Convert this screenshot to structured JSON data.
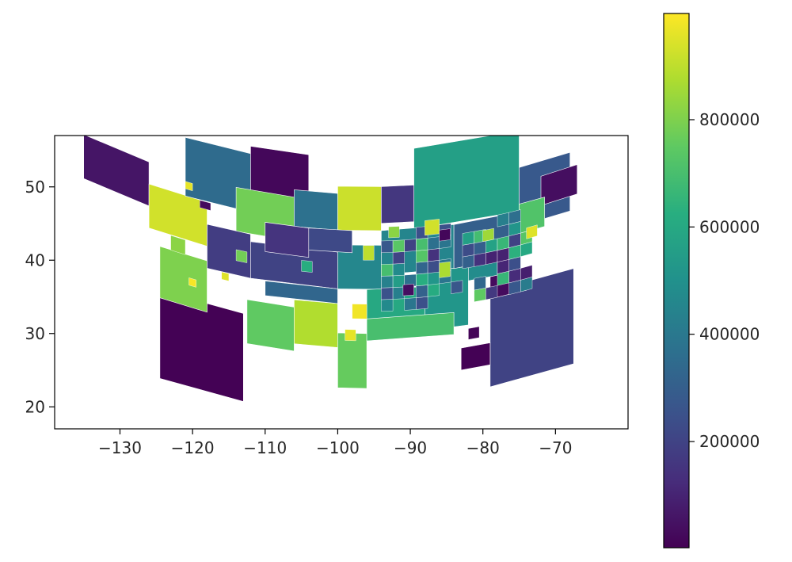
{
  "chart_data": {
    "type": "heatmap",
    "title": "",
    "xlabel": "",
    "ylabel": "",
    "xlim": [
      -139,
      -60
    ],
    "ylim": [
      17,
      57
    ],
    "xticks": [
      -130,
      -120,
      -110,
      -100,
      -90,
      -80,
      -70
    ],
    "yticks": [
      20,
      30,
      40,
      50
    ],
    "grid": false,
    "colormap": "viridis",
    "colorbar": {
      "vmin": 2000,
      "vmax": 998000,
      "ticks": [
        200000,
        400000,
        600000,
        800000
      ]
    },
    "cells": [
      {
        "lon": [
          -124.5,
          -113
        ],
        "lat": [
          19,
          31
        ],
        "value": 5000
      },
      {
        "lon": [
          -112.5,
          -106
        ],
        "lat": [
          27,
          33
        ],
        "value": 750000
      },
      {
        "lon": [
          -106,
          -100
        ],
        "lat": [
          28,
          34
        ],
        "value": 880000
      },
      {
        "lon": [
          -124.5,
          -118
        ],
        "lat": [
          30,
          37
        ],
        "value": 800000
      },
      {
        "lon": [
          -100,
          -96
        ],
        "lat": [
          22.5,
          30
        ],
        "value": 760000
      },
      {
        "lon": [
          -79,
          -67.5
        ],
        "lat": [
          21,
          34
        ],
        "value": 200000
      },
      {
        "lon": [
          -83,
          -79
        ],
        "lat": [
          24,
          27
        ],
        "value": 5000
      },
      {
        "lon": [
          -89.5,
          -75
        ],
        "lat": [
          44,
          55
        ],
        "value": 560000
      },
      {
        "lon": [
          -75,
          -68
        ],
        "lat": [
          42,
          50
        ],
        "value": 280000
      },
      {
        "lon": [
          -135,
          -126
        ],
        "lat": [
          42,
          48
        ],
        "value": 60000
      },
      {
        "lon": [
          -126,
          -118
        ],
        "lat": [
          39,
          45
        ],
        "value": 930000
      },
      {
        "lon": [
          -121,
          -112
        ],
        "lat": [
          45,
          53
        ],
        "value": 350000
      },
      {
        "lon": [
          -112,
          -104
        ],
        "lat": [
          47,
          54
        ],
        "value": 20000
      },
      {
        "lon": [
          -114,
          -106
        ],
        "lat": [
          42,
          48
        ],
        "value": 780000
      },
      {
        "lon": [
          -106,
          -100
        ],
        "lat": [
          44,
          49
        ],
        "value": 370000
      },
      {
        "lon": [
          -100,
          -94
        ],
        "lat": [
          44,
          50
        ],
        "value": 920000
      },
      {
        "lon": [
          -94,
          -89.5
        ],
        "lat": [
          45,
          50
        ],
        "value": 160000
      },
      {
        "lon": [
          -118,
          -112
        ],
        "lat": [
          36,
          42
        ],
        "value": 180000
      },
      {
        "lon": [
          -72,
          -67
        ],
        "lat": [
          44,
          48
        ],
        "value": 40000
      },
      {
        "lon": [
          -75,
          -71.5
        ],
        "lat": [
          41,
          45
        ],
        "value": 720000
      },
      {
        "lon": [
          -83,
          -78
        ],
        "lat": [
          36,
          42
        ],
        "value": 480000
      },
      {
        "lon": [
          -79,
          -74
        ],
        "lat": [
          33,
          36
        ],
        "value": 30000
      },
      {
        "lon": [
          -112,
          -100
        ],
        "lat": [
          36,
          41
        ],
        "value": 200000
      },
      {
        "lon": [
          -110,
          -100
        ],
        "lat": [
          34,
          36
        ],
        "value": 330000
      },
      {
        "lon": [
          -100,
          -94
        ],
        "lat": [
          36,
          42
        ],
        "value": 460000
      },
      {
        "lon": [
          -96,
          -88
        ],
        "lat": [
          30,
          36
        ],
        "value": 600000
      },
      {
        "lon": [
          -94,
          -84
        ],
        "lat": [
          38,
          44
        ],
        "value": 450000
      },
      {
        "lon": [
          -88,
          -82
        ],
        "lat": [
          30,
          38
        ],
        "value": 520000
      },
      {
        "lon": [
          -84,
          -76
        ],
        "lat": [
          38,
          44
        ],
        "value": 300000
      },
      {
        "lon": [
          -96,
          -84
        ],
        "lat": [
          29,
          32
        ],
        "value": 700000
      },
      {
        "lon": [
          -110,
          -104
        ],
        "lat": [
          40,
          44
        ],
        "value": 150000
      },
      {
        "lon": [
          -104,
          -98
        ],
        "lat": [
          41,
          44
        ],
        "value": 220000
      }
    ],
    "patches": [
      {
        "lon": [
          -123,
          -121
        ],
        "lat": [
          37,
          39
        ],
        "value": 820000
      },
      {
        "lon": [
          -120.5,
          -119.5
        ],
        "lat": [
          33,
          34
        ],
        "value": 990000
      },
      {
        "lon": [
          -116,
          -115
        ],
        "lat": [
          35,
          36
        ],
        "value": 950000
      },
      {
        "lon": [
          -98,
          -96
        ],
        "lat": [
          32,
          34
        ],
        "value": 980000
      },
      {
        "lon": [
          -99,
          -97.5
        ],
        "lat": [
          29,
          30.5
        ],
        "value": 960000
      },
      {
        "lon": [
          -96.5,
          -95
        ],
        "lat": [
          40,
          42
        ],
        "value": 900000
      },
      {
        "lon": [
          -88,
          -86
        ],
        "lat": [
          43,
          45
        ],
        "value": 930000
      },
      {
        "lon": [
          -86,
          -84.5
        ],
        "lat": [
          37,
          39
        ],
        "value": 870000
      },
      {
        "lon": [
          -74,
          -72.5
        ],
        "lat": [
          40,
          41.5
        ],
        "value": 950000
      },
      {
        "lon": [
          -82,
          -80.5
        ],
        "lat": [
          28,
          29.5
        ],
        "value": 10000
      },
      {
        "lon": [
          -121,
          -120
        ],
        "lat": [
          46,
          47
        ],
        "value": 960000
      },
      {
        "lon": [
          -119,
          -117.5
        ],
        "lat": [
          44,
          45
        ],
        "value": 30000
      },
      {
        "lon": [
          -91,
          -89.5
        ],
        "lat": [
          35,
          36.5
        ],
        "value": 40000
      },
      {
        "lon": [
          -86,
          -84.5
        ],
        "lat": [
          42,
          43.5
        ],
        "value": 20000
      },
      {
        "lon": [
          -80,
          -78.5
        ],
        "lat": [
          41,
          42.5
        ],
        "value": 850000
      },
      {
        "lon": [
          -93,
          -91.5
        ],
        "lat": [
          43,
          44.5
        ],
        "value": 820000
      },
      {
        "lon": [
          -105,
          -103.5
        ],
        "lat": [
          38,
          39.5
        ],
        "value": 620000
      },
      {
        "lon": [
          -114,
          -112.5
        ],
        "lat": [
          38,
          39.5
        ],
        "value": 780000
      }
    ]
  }
}
